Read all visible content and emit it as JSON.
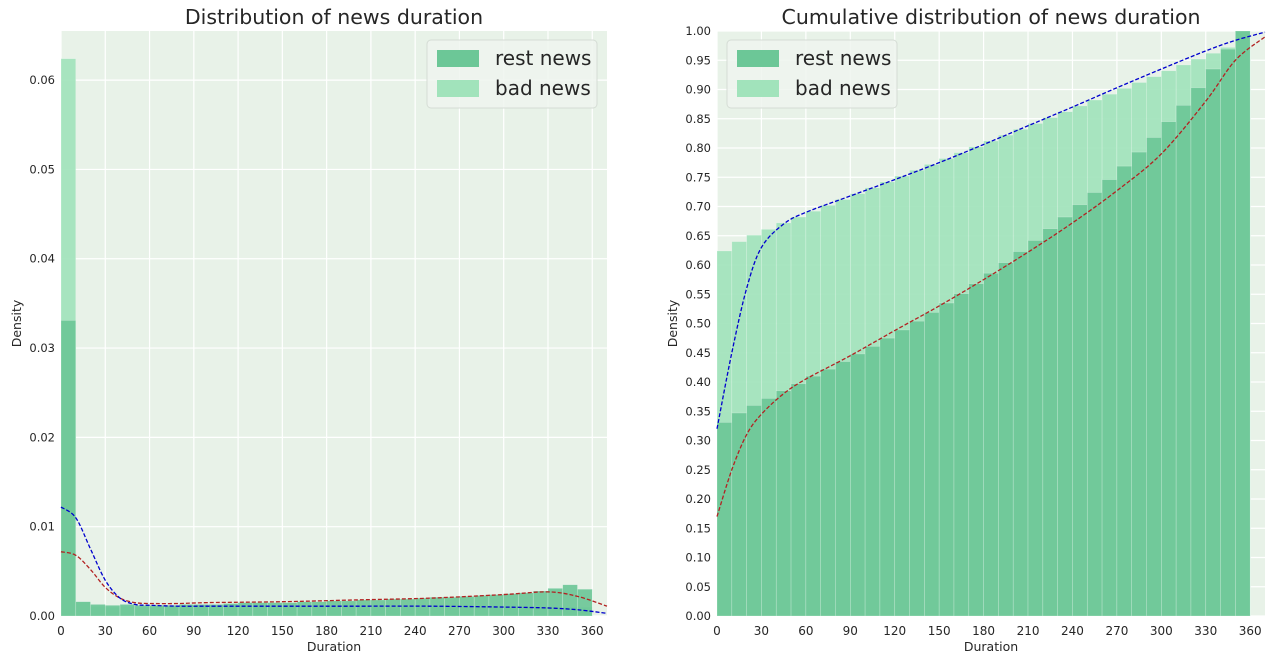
{
  "colors": {
    "background": "#ffffff",
    "plot_bg": "#e8f2e8",
    "grid": "#ffffff",
    "rest_fill": "#6cc797",
    "bad_fill": "#a1e3bb",
    "rest_kde": "#b22222",
    "bad_kde": "#0000cd",
    "text": "#262626"
  },
  "chart_data": [
    {
      "type": "histogram",
      "title": "Distribution of news duration",
      "xlabel": "Duration",
      "ylabel": "Density",
      "xlim": [
        0,
        370
      ],
      "ylim": [
        0,
        0.0655
      ],
      "xticks": [
        0,
        30,
        60,
        90,
        120,
        150,
        180,
        210,
        240,
        270,
        300,
        330,
        360
      ],
      "yticks": [
        0.0,
        0.01,
        0.02,
        0.03,
        0.04,
        0.05,
        0.06
      ],
      "ytick_labels": [
        "0.00",
        "0.01",
        "0.02",
        "0.03",
        "0.04",
        "0.05",
        "0.06"
      ],
      "bin_edges_start": 0,
      "bin_width": 10,
      "grid": true,
      "legend_position": "top-right",
      "series": [
        {
          "name": "rest news",
          "values": [
            0.0331,
            0.0016,
            0.0013,
            0.0012,
            0.0013,
            0.0012,
            0.0012,
            0.0012,
            0.0013,
            0.0013,
            0.0013,
            0.0014,
            0.0015,
            0.0015,
            0.0015,
            0.0015,
            0.0016,
            0.0016,
            0.0017,
            0.0017,
            0.0018,
            0.0018,
            0.0019,
            0.0019,
            0.002,
            0.0021,
            0.0021,
            0.0022,
            0.0023,
            0.0024,
            0.0025,
            0.0026,
            0.0028,
            0.0031,
            0.0035,
            0.003
          ],
          "kde_x": [
            0,
            10,
            20,
            30,
            40,
            50,
            60,
            80,
            100,
            150,
            200,
            250,
            300,
            330,
            350,
            370
          ],
          "kde_y": [
            0.0072,
            0.0068,
            0.0052,
            0.0032,
            0.002,
            0.0015,
            0.0014,
            0.0014,
            0.0015,
            0.0016,
            0.0018,
            0.002,
            0.0024,
            0.0027,
            0.0022,
            0.0011
          ]
        },
        {
          "name": "bad news",
          "values": [
            0.0624,
            0.0016,
            0.0011,
            0.001,
            0.0011,
            0.001,
            0.001,
            0.001,
            0.001,
            0.001,
            0.001,
            0.001,
            0.001,
            0.001,
            0.001,
            0.001,
            0.001,
            0.001,
            0.001,
            0.001,
            0.001,
            0.001,
            0.001,
            0.001,
            0.001,
            0.001,
            0.001,
            0.001,
            0.001,
            0.001,
            0.001,
            0.001,
            0.001,
            0.001,
            0.001,
            0.001
          ],
          "kde_x": [
            0,
            10,
            20,
            30,
            40,
            50,
            60,
            80,
            100,
            150,
            200,
            250,
            300,
            330,
            350,
            370
          ],
          "kde_y": [
            0.0122,
            0.011,
            0.0075,
            0.004,
            0.002,
            0.0013,
            0.0012,
            0.0011,
            0.0011,
            0.0011,
            0.0011,
            0.0011,
            0.001,
            0.0009,
            0.0007,
            0.0003
          ]
        }
      ]
    },
    {
      "type": "histogram",
      "cumulative": true,
      "title": "Cumulative distribution of news duration",
      "xlabel": "Duration",
      "ylabel": "Density",
      "xlim": [
        0,
        370
      ],
      "ylim": [
        0,
        1.0
      ],
      "xticks": [
        0,
        30,
        60,
        90,
        120,
        150,
        180,
        210,
        240,
        270,
        300,
        330,
        360
      ],
      "yticks": [
        0.0,
        0.05,
        0.1,
        0.15,
        0.2,
        0.25,
        0.3,
        0.35,
        0.4,
        0.45,
        0.5,
        0.55,
        0.6,
        0.65,
        0.7,
        0.75,
        0.8,
        0.85,
        0.9,
        0.95,
        1.0
      ],
      "ytick_labels": [
        "0.00",
        "0.05",
        "0.10",
        "0.15",
        "0.20",
        "0.25",
        "0.30",
        "0.35",
        "0.40",
        "0.45",
        "0.50",
        "0.55",
        "0.60",
        "0.65",
        "0.70",
        "0.75",
        "0.80",
        "0.85",
        "0.90",
        "0.95",
        "1.00"
      ],
      "bin_edges_start": 0,
      "bin_width": 10,
      "grid": true,
      "legend_position": "top-left",
      "series": [
        {
          "name": "rest news",
          "values": [
            0.331,
            0.347,
            0.36,
            0.372,
            0.385,
            0.397,
            0.41,
            0.422,
            0.435,
            0.448,
            0.461,
            0.475,
            0.489,
            0.504,
            0.519,
            0.535,
            0.551,
            0.568,
            0.586,
            0.604,
            0.623,
            0.642,
            0.662,
            0.682,
            0.703,
            0.724,
            0.746,
            0.769,
            0.793,
            0.818,
            0.845,
            0.873,
            0.903,
            0.935,
            0.969,
            1.0
          ],
          "kde_x": [
            0,
            10,
            20,
            30,
            45,
            60,
            90,
            120,
            150,
            180,
            210,
            240,
            270,
            300,
            330,
            350,
            370
          ],
          "kde_y": [
            0.17,
            0.25,
            0.31,
            0.345,
            0.38,
            0.405,
            0.445,
            0.488,
            0.53,
            0.575,
            0.622,
            0.672,
            0.727,
            0.79,
            0.88,
            0.95,
            0.99
          ]
        },
        {
          "name": "bad news",
          "values": [
            0.624,
            0.64,
            0.651,
            0.661,
            0.672,
            0.682,
            0.692,
            0.702,
            0.712,
            0.722,
            0.732,
            0.742,
            0.752,
            0.762,
            0.772,
            0.782,
            0.792,
            0.802,
            0.812,
            0.822,
            0.832,
            0.842,
            0.852,
            0.862,
            0.872,
            0.882,
            0.892,
            0.902,
            0.912,
            0.922,
            0.932,
            0.942,
            0.952,
            0.962,
            0.972,
            1.0
          ],
          "kde_x": [
            0,
            10,
            20,
            30,
            45,
            60,
            90,
            120,
            150,
            180,
            210,
            240,
            270,
            300,
            330,
            350,
            370
          ],
          "kde_y": [
            0.32,
            0.45,
            0.56,
            0.63,
            0.67,
            0.69,
            0.718,
            0.746,
            0.775,
            0.806,
            0.838,
            0.87,
            0.903,
            0.935,
            0.966,
            0.984,
            0.998
          ]
        }
      ]
    }
  ]
}
